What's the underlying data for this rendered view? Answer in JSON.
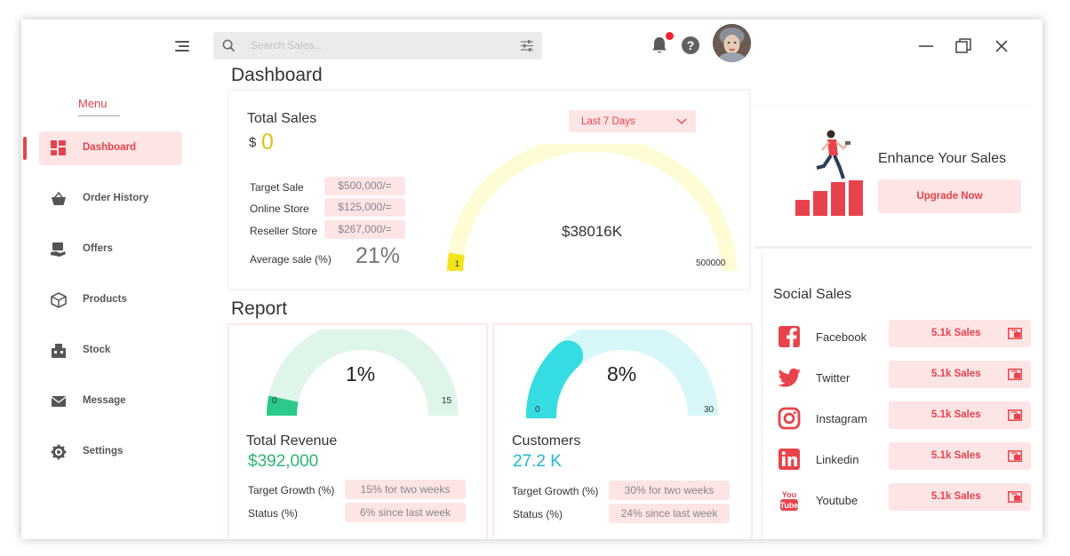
{
  "header": {
    "search_placeholder": "Search Sales..."
  },
  "sidebar": {
    "menu_label": "Menu",
    "items": [
      {
        "label": "Dashboard",
        "icon": "dashboard-icon",
        "active": true
      },
      {
        "label": "Order History",
        "icon": "basket-icon",
        "active": false
      },
      {
        "label": "Offers",
        "icon": "offers-icon",
        "active": false
      },
      {
        "label": "Products",
        "icon": "box-icon",
        "active": false
      },
      {
        "label": "Stock",
        "icon": "stock-icon",
        "active": false
      },
      {
        "label": "Message",
        "icon": "message-icon",
        "active": false
      },
      {
        "label": "Settings",
        "icon": "gear-icon",
        "active": false
      }
    ]
  },
  "dashboard": {
    "title": "Dashboard",
    "total_sales": {
      "label": "Total Sales",
      "currency": "$",
      "value": "0",
      "period": "Last 7 Days",
      "rows": [
        {
          "label": "Target Sale",
          "value": "$500,000/="
        },
        {
          "label": "Online Store",
          "value": "$125,000/="
        },
        {
          "label": "Reseller Store",
          "value": "$267,000/="
        }
      ],
      "average_label": "Average sale (%)",
      "average_value": "21%",
      "gauge": {
        "center_value": "$38016K",
        "min": "1",
        "max": "500000"
      }
    }
  },
  "report": {
    "title": "Report",
    "revenue": {
      "gauge_value": "1%",
      "min": "0",
      "max": "15",
      "fill_fraction": 0.0667,
      "label": "Total Revenue",
      "value": "$392,000",
      "target_label": "Target Growth (%)",
      "target_value": "15% for two weeks",
      "status_label": "Status (%)",
      "status_value": "6% since last week"
    },
    "customers": {
      "gauge_value": "8%",
      "min": "0",
      "max": "30",
      "fill_fraction": 0.2667,
      "label": "Customers",
      "value": "27.2 K",
      "target_label": "Target Growth (%)",
      "target_value": "30% for two weeks",
      "status_label": "Status (%)",
      "status_value": "24% since last week"
    }
  },
  "promo": {
    "title": "Enhance Your Sales",
    "button": "Upgrade Now"
  },
  "social": {
    "title": "Social Sales",
    "items": [
      {
        "name": "Facebook",
        "sales": "5.1k Sales",
        "icon": "facebook-icon"
      },
      {
        "name": "Twitter",
        "sales": "5.1k Sales",
        "icon": "twitter-icon"
      },
      {
        "name": "Instagram",
        "sales": "5.1k Sales",
        "icon": "instagram-icon"
      },
      {
        "name": "Linkedin",
        "sales": "5.1k Sales",
        "icon": "linkedin-icon"
      },
      {
        "name": "Youtube",
        "sales": "5.1k Sales",
        "icon": "youtube-icon"
      }
    ]
  },
  "colors": {
    "accent": "#e8434c",
    "accent_light": "#fde4e5",
    "green": "#2bb673",
    "cyan": "#1fb8d2",
    "gold": "#d9c21a"
  }
}
